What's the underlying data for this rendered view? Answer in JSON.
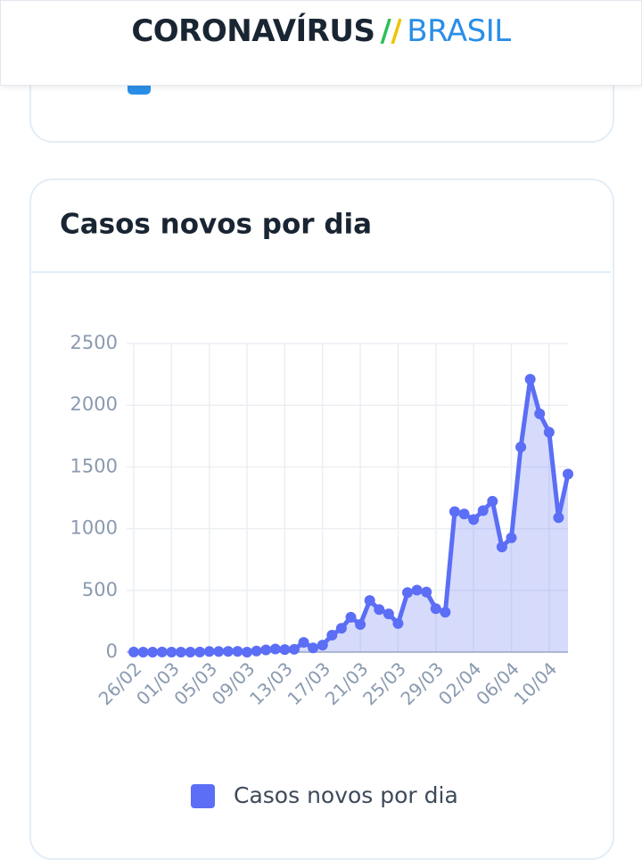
{
  "header": {
    "title": "CORONAVÍRUS",
    "separator": "//",
    "subtitle": "BRASIL"
  },
  "chart_data": {
    "type": "line",
    "title": "Casos novos por dia",
    "categories": [
      "26/02",
      null,
      null,
      null,
      "01/03",
      null,
      null,
      null,
      "05/03",
      null,
      null,
      null,
      "09/03",
      null,
      null,
      null,
      "13/03",
      null,
      null,
      null,
      "17/03",
      null,
      null,
      null,
      "21/03",
      null,
      null,
      null,
      "25/03",
      null,
      null,
      null,
      "29/03",
      null,
      null,
      null,
      "02/04",
      null,
      null,
      null,
      "06/04",
      null,
      null,
      null,
      "10/04",
      null,
      null
    ],
    "series": [
      {
        "name": "Casos novos por dia",
        "color": "#5b6ef5",
        "values": [
          1,
          0,
          0,
          1,
          0,
          0,
          0,
          1,
          5,
          5,
          6,
          6,
          0,
          9,
          18,
          25,
          21,
          23,
          79,
          34,
          57,
          137,
          193,
          283,
          224,
          418,
          345,
          310,
          232,
          482,
          502,
          487,
          352,
          323,
          1138,
          1119,
          1074,
          1146,
          1222,
          852,
          926,
          1661,
          2210,
          1930,
          1781,
          1089,
          1442
        ]
      }
    ],
    "ylim": [
      0,
      2500
    ],
    "yticks": [
      0,
      500,
      1000,
      1500,
      2000,
      2500
    ],
    "grid": true,
    "legend": "bottom"
  }
}
